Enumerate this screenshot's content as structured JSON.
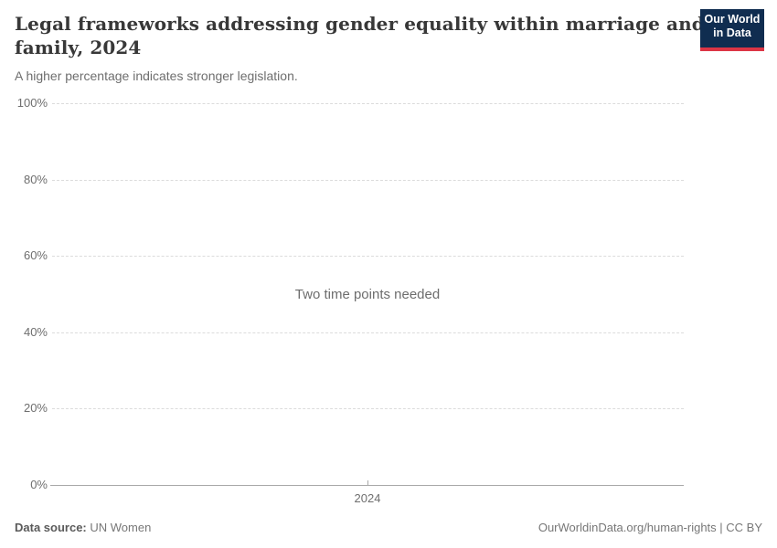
{
  "header": {
    "title": "Legal frameworks addressing gender equality within marriage and\nfamily, 2024",
    "subtitle": "A higher percentage indicates stronger legislation."
  },
  "logo": {
    "line1": "Our World",
    "line2": "in Data",
    "bg_color": "#102d50",
    "bar_color": "#dc3545"
  },
  "chart_data": {
    "type": "line",
    "title": "Legal frameworks addressing gender equality within marriage and family, 2024",
    "subtitle": "A higher percentage indicates stronger legislation.",
    "series": [],
    "empty_message": "Two time points needed",
    "x": [
      2024
    ],
    "xticks": [
      "2024"
    ],
    "yticks": [
      "0%",
      "20%",
      "40%",
      "60%",
      "80%",
      "100%"
    ],
    "ylim": [
      0,
      100
    ],
    "grid": "horizontal dashed",
    "gridline_color": "#dcdcdc",
    "axis_color": "#a9a9a9"
  },
  "footer": {
    "source_label": "Data source:",
    "source_value": " UN Women",
    "right_text": "OurWorldinData.org/human-rights | CC BY"
  }
}
